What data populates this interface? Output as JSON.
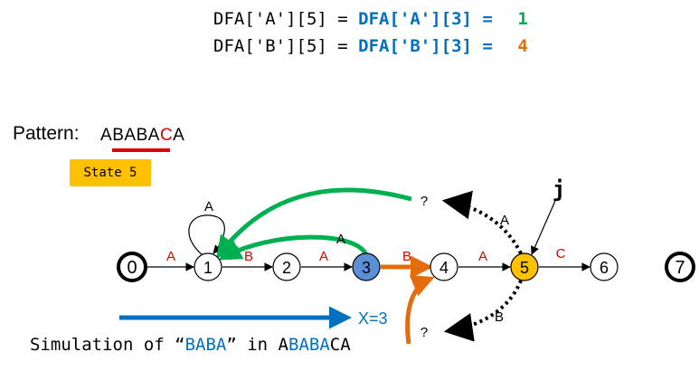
{
  "equations": {
    "line1_left": "DFA['A'][5] =",
    "line1_mid": "DFA['A'][3] =",
    "line1_result": "1",
    "line2_left": "DFA['B'][5] =",
    "line2_mid": "DFA['B'][3] =",
    "line2_result": "4"
  },
  "pattern": {
    "label": "Pattern:",
    "chars": [
      "A",
      "B",
      "A",
      "B",
      "A",
      "C",
      "A"
    ],
    "highlight_index": 5
  },
  "state_badge": "State 5",
  "states": [
    "0",
    "1",
    "2",
    "3",
    "4",
    "5",
    "6",
    "7"
  ],
  "transitions": [
    {
      "label": "A"
    },
    {
      "label": "B"
    },
    {
      "label": "A"
    },
    {
      "label": "B"
    },
    {
      "label": "A"
    },
    {
      "label": "C"
    }
  ],
  "self_loop_label": "A",
  "back_arrow_label": "A",
  "question_mark_a": "?",
  "question_mark_b": "?",
  "dotted_label_a": "A",
  "dotted_label_b": "B",
  "pointer_label": "j",
  "simulation": {
    "x_label": "X=3",
    "prefix": "Simulation of “",
    "sim_string": "BABA",
    "middle": "” in A",
    "tail_blue": "BABA",
    "tail_black": "CA"
  },
  "colors": {
    "green": "#00b050",
    "orange": "#e46c0a",
    "blue": "#0070c0",
    "red": "#e00000",
    "yellow": "#ffc000",
    "state3": "#5b8fd6"
  }
}
